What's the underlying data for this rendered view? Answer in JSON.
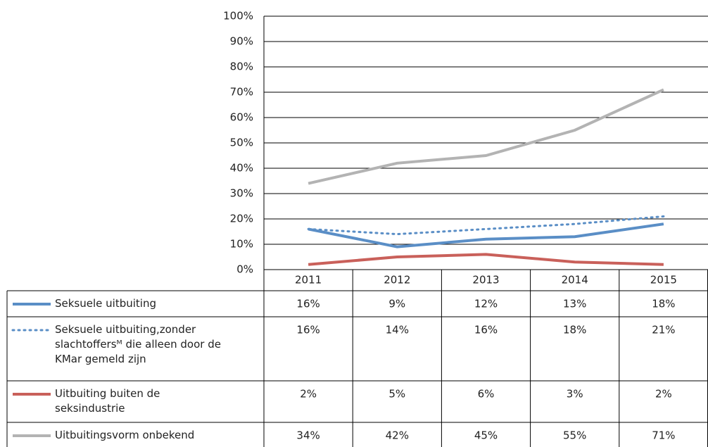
{
  "chart_data": {
    "type": "line",
    "categories": [
      "2011",
      "2012",
      "2013",
      "2014",
      "2015"
    ],
    "series": [
      {
        "name": "Seksuele uitbuiting",
        "color": "#5a8ec6",
        "dash": false,
        "values": [
          16,
          9,
          12,
          13,
          18
        ],
        "value_labels": [
          "16%",
          "9%",
          "12%",
          "13%",
          "18%"
        ]
      },
      {
        "name": "Seksuele uitbuiting,zonder slachtoffersᴹ die alleen door de KMar gemeld zijn",
        "color": "#5a8ec6",
        "dash": true,
        "values": [
          16,
          14,
          16,
          18,
          21
        ],
        "value_labels": [
          "16%",
          "14%",
          "16%",
          "18%",
          "21%"
        ]
      },
      {
        "name": "Uitbuiting buiten de seksindustrie",
        "color": "#c9605a",
        "dash": false,
        "values": [
          2,
          5,
          6,
          3,
          2
        ],
        "value_labels": [
          "2%",
          "5%",
          "6%",
          "3%",
          "2%"
        ]
      },
      {
        "name": "Uitbuitingsvorm onbekend",
        "color": "#b3b3b3",
        "dash": false,
        "values": [
          34,
          42,
          45,
          55,
          71
        ],
        "value_labels": [
          "34%",
          "42%",
          "45%",
          "55%",
          "71%"
        ]
      }
    ],
    "ylim": [
      0,
      100
    ],
    "yticks": [
      {
        "value": 0,
        "label": "0%"
      },
      {
        "value": 10,
        "label": "10%"
      },
      {
        "value": 20,
        "label": "20%"
      },
      {
        "value": 30,
        "label": "30%"
      },
      {
        "value": 40,
        "label": "40%"
      },
      {
        "value": 50,
        "label": "50%"
      },
      {
        "value": 60,
        "label": "60%"
      },
      {
        "value": 70,
        "label": "70%"
      },
      {
        "value": 80,
        "label": "80%"
      },
      {
        "value": 90,
        "label": "90%"
      },
      {
        "value": 100,
        "label": "100%"
      }
    ],
    "grid": true
  }
}
